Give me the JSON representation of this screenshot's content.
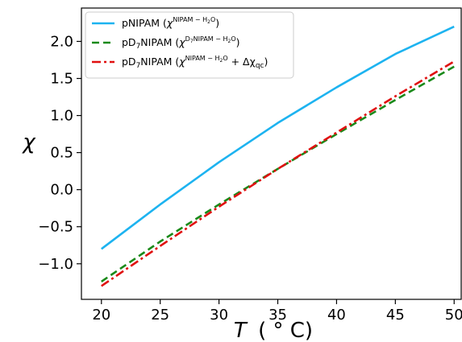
{
  "chart_data": {
    "type": "line",
    "xlabel_var": "T",
    "xlabel_unit": "( ° C)",
    "ylabel": "χ",
    "xlim": [
      18.3,
      50.6
    ],
    "ylim": [
      -1.48,
      2.45
    ],
    "x_ticks": [
      20,
      25,
      30,
      35,
      40,
      45,
      50
    ],
    "y_ticks": [
      -1.0,
      -0.5,
      0.0,
      0.5,
      1.0,
      1.5,
      2.0
    ],
    "x_tick_labels": [
      "20",
      "25",
      "30",
      "35",
      "40",
      "45",
      "50"
    ],
    "y_tick_labels": [
      "−1.0",
      "−0.5",
      "0.0",
      "0.5",
      "1.0",
      "1.5",
      "2.0"
    ],
    "grid": false,
    "legend_position": "top-left",
    "series": [
      {
        "name": "pNIPAM (χ^{NIPAM − H2O})",
        "legend_main": "pNIPAM (",
        "legend_chi": "χ",
        "legend_sup": "NIPAM − H",
        "legend_sub": "2",
        "legend_sup_end": "O",
        "legend_extra": "",
        "legend_close": ")",
        "color": "#1db3f0",
        "dash": "solid",
        "x": [
          20,
          25,
          30,
          35,
          40,
          45,
          50
        ],
        "y": [
          -0.8,
          -0.2,
          0.37,
          0.9,
          1.38,
          1.83,
          2.2
        ]
      },
      {
        "name": "pD7NIPAM (χ^{D7NIPAM − H2O})",
        "legend_main": "pD",
        "legend_main_sub": "7",
        "legend_main_end": "NIPAM (",
        "legend_chi": "χ",
        "legend_sup": "D",
        "legend_sup_sub": "7",
        "legend_sup_mid": "NIPAM − H",
        "legend_sub": "2",
        "legend_sup_end": "O",
        "legend_close": ")",
        "color": "#1a8a1a",
        "dash": "dashed",
        "x": [
          20,
          25,
          30,
          35,
          40,
          45,
          50
        ],
        "y": [
          -1.24,
          -0.7,
          -0.2,
          0.28,
          0.75,
          1.21,
          1.66
        ]
      },
      {
        "name": "pD7NIPAM (χ^{NIPAM − H2O} + Δχqc)",
        "legend_main": "pD",
        "legend_main_sub": "7",
        "legend_main_end": "NIPAM  (",
        "legend_chi": "χ",
        "legend_sup": "NIPAM − H",
        "legend_sub": "2",
        "legend_sup_end": "O",
        "legend_extra": " + Δχ",
        "legend_extra_sub": "qc",
        "legend_close": ")",
        "color": "#e01010",
        "dash": "dashdot",
        "x": [
          20,
          25,
          30,
          35,
          40,
          45,
          50
        ],
        "y": [
          -1.3,
          -0.76,
          -0.23,
          0.28,
          0.77,
          1.26,
          1.73
        ]
      }
    ]
  }
}
